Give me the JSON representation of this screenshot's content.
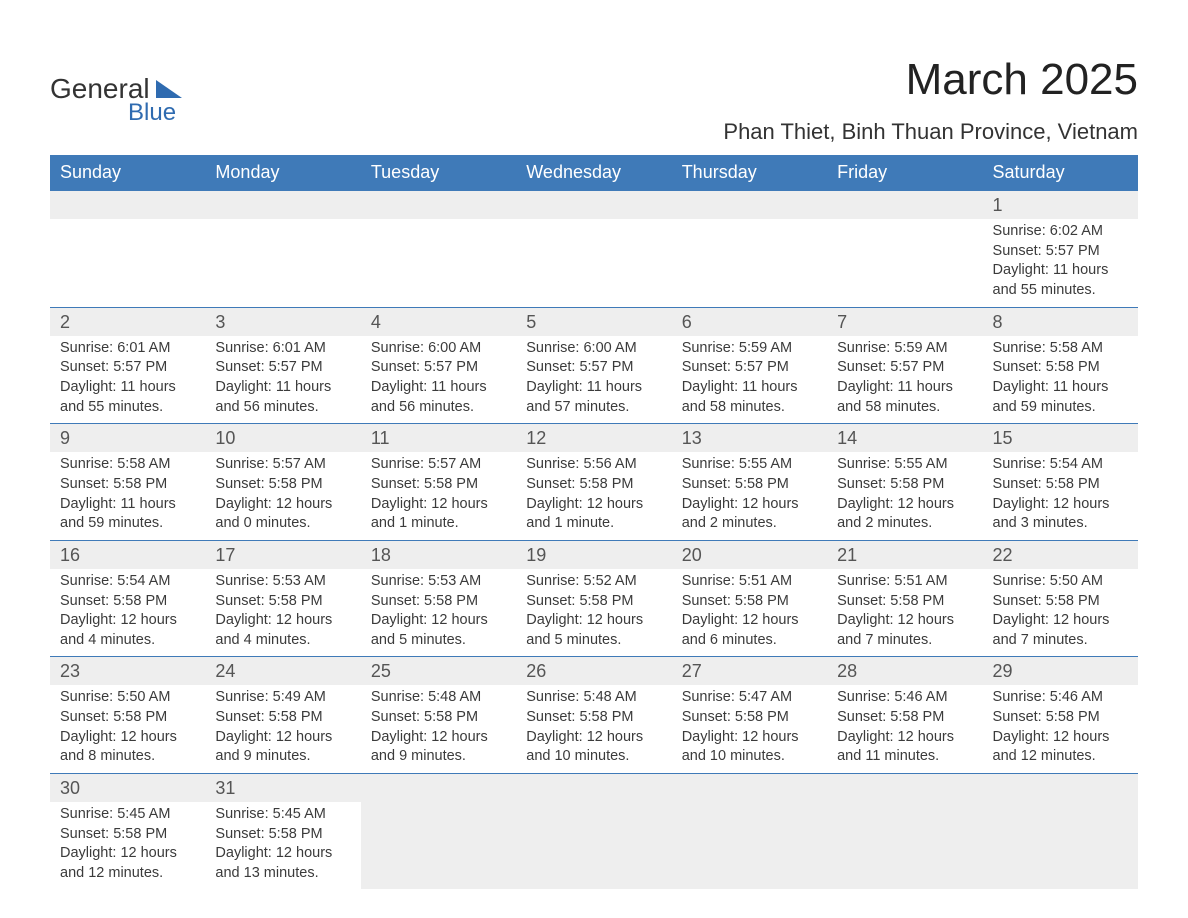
{
  "logo": {
    "word1": "General",
    "word2": "Blue"
  },
  "title": "March 2025",
  "location": "Phan Thiet, Binh Thuan Province, Vietnam",
  "colors": {
    "header_bg": "#3f7ab8",
    "header_text": "#ffffff",
    "daynum_bg": "#eeeeee",
    "row_divider": "#3f7ab8",
    "body_text": "#3b3b3b",
    "logo_blue": "#2f6bb0"
  },
  "typography": {
    "title_fontsize": 44,
    "location_fontsize": 22,
    "weekday_fontsize": 18,
    "daynum_fontsize": 18,
    "detail_fontsize": 14.5,
    "font_family": "Arial"
  },
  "weekdays": [
    "Sunday",
    "Monday",
    "Tuesday",
    "Wednesday",
    "Thursday",
    "Friday",
    "Saturday"
  ],
  "weeks": [
    [
      null,
      null,
      null,
      null,
      null,
      null,
      {
        "n": "1",
        "sr": "Sunrise: 6:02 AM",
        "ss": "Sunset: 5:57 PM",
        "dl": "Daylight: 11 hours and 55 minutes."
      }
    ],
    [
      {
        "n": "2",
        "sr": "Sunrise: 6:01 AM",
        "ss": "Sunset: 5:57 PM",
        "dl": "Daylight: 11 hours and 55 minutes."
      },
      {
        "n": "3",
        "sr": "Sunrise: 6:01 AM",
        "ss": "Sunset: 5:57 PM",
        "dl": "Daylight: 11 hours and 56 minutes."
      },
      {
        "n": "4",
        "sr": "Sunrise: 6:00 AM",
        "ss": "Sunset: 5:57 PM",
        "dl": "Daylight: 11 hours and 56 minutes."
      },
      {
        "n": "5",
        "sr": "Sunrise: 6:00 AM",
        "ss": "Sunset: 5:57 PM",
        "dl": "Daylight: 11 hours and 57 minutes."
      },
      {
        "n": "6",
        "sr": "Sunrise: 5:59 AM",
        "ss": "Sunset: 5:57 PM",
        "dl": "Daylight: 11 hours and 58 minutes."
      },
      {
        "n": "7",
        "sr": "Sunrise: 5:59 AM",
        "ss": "Sunset: 5:57 PM",
        "dl": "Daylight: 11 hours and 58 minutes."
      },
      {
        "n": "8",
        "sr": "Sunrise: 5:58 AM",
        "ss": "Sunset: 5:58 PM",
        "dl": "Daylight: 11 hours and 59 minutes."
      }
    ],
    [
      {
        "n": "9",
        "sr": "Sunrise: 5:58 AM",
        "ss": "Sunset: 5:58 PM",
        "dl": "Daylight: 11 hours and 59 minutes."
      },
      {
        "n": "10",
        "sr": "Sunrise: 5:57 AM",
        "ss": "Sunset: 5:58 PM",
        "dl": "Daylight: 12 hours and 0 minutes."
      },
      {
        "n": "11",
        "sr": "Sunrise: 5:57 AM",
        "ss": "Sunset: 5:58 PM",
        "dl": "Daylight: 12 hours and 1 minute."
      },
      {
        "n": "12",
        "sr": "Sunrise: 5:56 AM",
        "ss": "Sunset: 5:58 PM",
        "dl": "Daylight: 12 hours and 1 minute."
      },
      {
        "n": "13",
        "sr": "Sunrise: 5:55 AM",
        "ss": "Sunset: 5:58 PM",
        "dl": "Daylight: 12 hours and 2 minutes."
      },
      {
        "n": "14",
        "sr": "Sunrise: 5:55 AM",
        "ss": "Sunset: 5:58 PM",
        "dl": "Daylight: 12 hours and 2 minutes."
      },
      {
        "n": "15",
        "sr": "Sunrise: 5:54 AM",
        "ss": "Sunset: 5:58 PM",
        "dl": "Daylight: 12 hours and 3 minutes."
      }
    ],
    [
      {
        "n": "16",
        "sr": "Sunrise: 5:54 AM",
        "ss": "Sunset: 5:58 PM",
        "dl": "Daylight: 12 hours and 4 minutes."
      },
      {
        "n": "17",
        "sr": "Sunrise: 5:53 AM",
        "ss": "Sunset: 5:58 PM",
        "dl": "Daylight: 12 hours and 4 minutes."
      },
      {
        "n": "18",
        "sr": "Sunrise: 5:53 AM",
        "ss": "Sunset: 5:58 PM",
        "dl": "Daylight: 12 hours and 5 minutes."
      },
      {
        "n": "19",
        "sr": "Sunrise: 5:52 AM",
        "ss": "Sunset: 5:58 PM",
        "dl": "Daylight: 12 hours and 5 minutes."
      },
      {
        "n": "20",
        "sr": "Sunrise: 5:51 AM",
        "ss": "Sunset: 5:58 PM",
        "dl": "Daylight: 12 hours and 6 minutes."
      },
      {
        "n": "21",
        "sr": "Sunrise: 5:51 AM",
        "ss": "Sunset: 5:58 PM",
        "dl": "Daylight: 12 hours and 7 minutes."
      },
      {
        "n": "22",
        "sr": "Sunrise: 5:50 AM",
        "ss": "Sunset: 5:58 PM",
        "dl": "Daylight: 12 hours and 7 minutes."
      }
    ],
    [
      {
        "n": "23",
        "sr": "Sunrise: 5:50 AM",
        "ss": "Sunset: 5:58 PM",
        "dl": "Daylight: 12 hours and 8 minutes."
      },
      {
        "n": "24",
        "sr": "Sunrise: 5:49 AM",
        "ss": "Sunset: 5:58 PM",
        "dl": "Daylight: 12 hours and 9 minutes."
      },
      {
        "n": "25",
        "sr": "Sunrise: 5:48 AM",
        "ss": "Sunset: 5:58 PM",
        "dl": "Daylight: 12 hours and 9 minutes."
      },
      {
        "n": "26",
        "sr": "Sunrise: 5:48 AM",
        "ss": "Sunset: 5:58 PM",
        "dl": "Daylight: 12 hours and 10 minutes."
      },
      {
        "n": "27",
        "sr": "Sunrise: 5:47 AM",
        "ss": "Sunset: 5:58 PM",
        "dl": "Daylight: 12 hours and 10 minutes."
      },
      {
        "n": "28",
        "sr": "Sunrise: 5:46 AM",
        "ss": "Sunset: 5:58 PM",
        "dl": "Daylight: 12 hours and 11 minutes."
      },
      {
        "n": "29",
        "sr": "Sunrise: 5:46 AM",
        "ss": "Sunset: 5:58 PM",
        "dl": "Daylight: 12 hours and 12 minutes."
      }
    ],
    [
      {
        "n": "30",
        "sr": "Sunrise: 5:45 AM",
        "ss": "Sunset: 5:58 PM",
        "dl": "Daylight: 12 hours and 12 minutes."
      },
      {
        "n": "31",
        "sr": "Sunrise: 5:45 AM",
        "ss": "Sunset: 5:58 PM",
        "dl": "Daylight: 12 hours and 13 minutes."
      },
      null,
      null,
      null,
      null,
      null
    ]
  ]
}
